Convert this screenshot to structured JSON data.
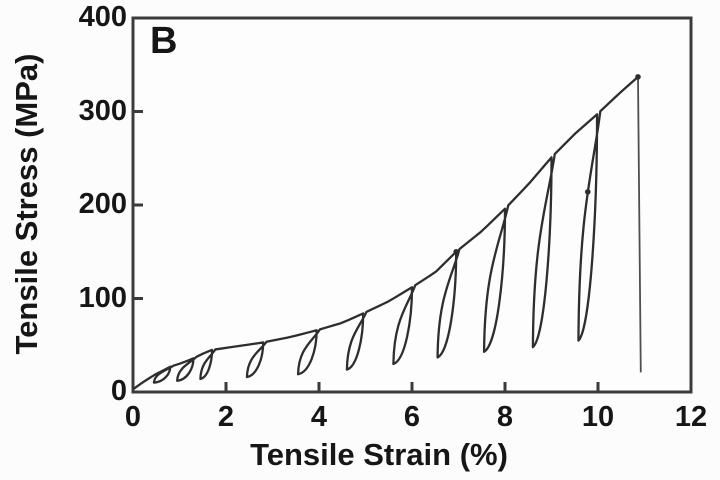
{
  "figure": {
    "panel_label": "B",
    "background_color": "#fcfcfc"
  },
  "chart_data": {
    "type": "line",
    "title": "B",
    "xlabel": "Tensile Strain (%)",
    "ylabel": "Tensile Stress (MPa)",
    "xlim": [
      0,
      12
    ],
    "ylim": [
      0,
      400
    ],
    "xticks": [
      0,
      2,
      4,
      6,
      8,
      10,
      12
    ],
    "yticks": [
      0,
      100,
      200,
      300,
      400
    ],
    "grid": false,
    "legend": "none",
    "description": "Cyclic tensile loading-unloading stress-strain curve with hysteresis loops up to fracture at ~10.9% strain / ~337 MPa",
    "colors": {
      "curve": "#2e2e2e",
      "axis": "#3b3b3b",
      "text": "#161616",
      "fracture_line": "#4f4f4f",
      "plot_background": "#fdfdfd"
    },
    "series": {
      "name": "loading-unloading trace",
      "envelope": [
        [
          0.03,
          4
        ],
        [
          0.2,
          10
        ],
        [
          0.45,
          18
        ],
        [
          0.8,
          27
        ],
        [
          1.05,
          31
        ],
        [
          1.3,
          36
        ],
        [
          1.5,
          41
        ],
        [
          1.7,
          45
        ],
        [
          2.25,
          49
        ],
        [
          2.8,
          53
        ],
        [
          3.4,
          59
        ],
        [
          3.95,
          66
        ],
        [
          4.5,
          74
        ],
        [
          4.95,
          84
        ],
        [
          5.5,
          97
        ],
        [
          6.0,
          112
        ],
        [
          6.5,
          128
        ],
        [
          6.95,
          150
        ],
        [
          7.5,
          172
        ],
        [
          8.0,
          196
        ],
        [
          8.5,
          222
        ],
        [
          9.0,
          251
        ],
        [
          9.5,
          276
        ],
        [
          9.98,
          297
        ],
        [
          10.45,
          319
        ],
        [
          10.86,
          337
        ]
      ],
      "cycles": [
        {
          "valley": [
            0.45,
            10
          ],
          "tip": [
            0.8,
            27
          ]
        },
        {
          "valley": [
            0.95,
            12
          ],
          "tip": [
            1.3,
            36
          ]
        },
        {
          "valley": [
            1.45,
            14
          ],
          "tip": [
            1.7,
            45
          ]
        },
        {
          "valley": [
            2.45,
            16
          ],
          "tip": [
            2.8,
            53
          ]
        },
        {
          "valley": [
            3.55,
            19
          ],
          "tip": [
            3.95,
            66
          ]
        },
        {
          "valley": [
            4.6,
            24
          ],
          "tip": [
            4.95,
            84
          ]
        },
        {
          "valley": [
            5.6,
            30
          ],
          "tip": [
            6.0,
            112
          ]
        },
        {
          "valley": [
            6.55,
            37
          ],
          "tip": [
            6.95,
            150
          ]
        },
        {
          "valley": [
            7.55,
            43
          ],
          "tip": [
            8.0,
            196
          ]
        },
        {
          "valley": [
            8.6,
            48
          ],
          "tip": [
            9.0,
            251
          ]
        },
        {
          "valley": [
            9.58,
            55
          ],
          "tip": [
            9.98,
            297
          ]
        }
      ],
      "fracture": {
        "peak": [
          10.86,
          337
        ],
        "drop_to": [
          10.92,
          21
        ]
      },
      "markers": [
        [
          6.95,
          150
        ],
        [
          9.78,
          214
        ],
        [
          10.86,
          337
        ]
      ]
    }
  }
}
